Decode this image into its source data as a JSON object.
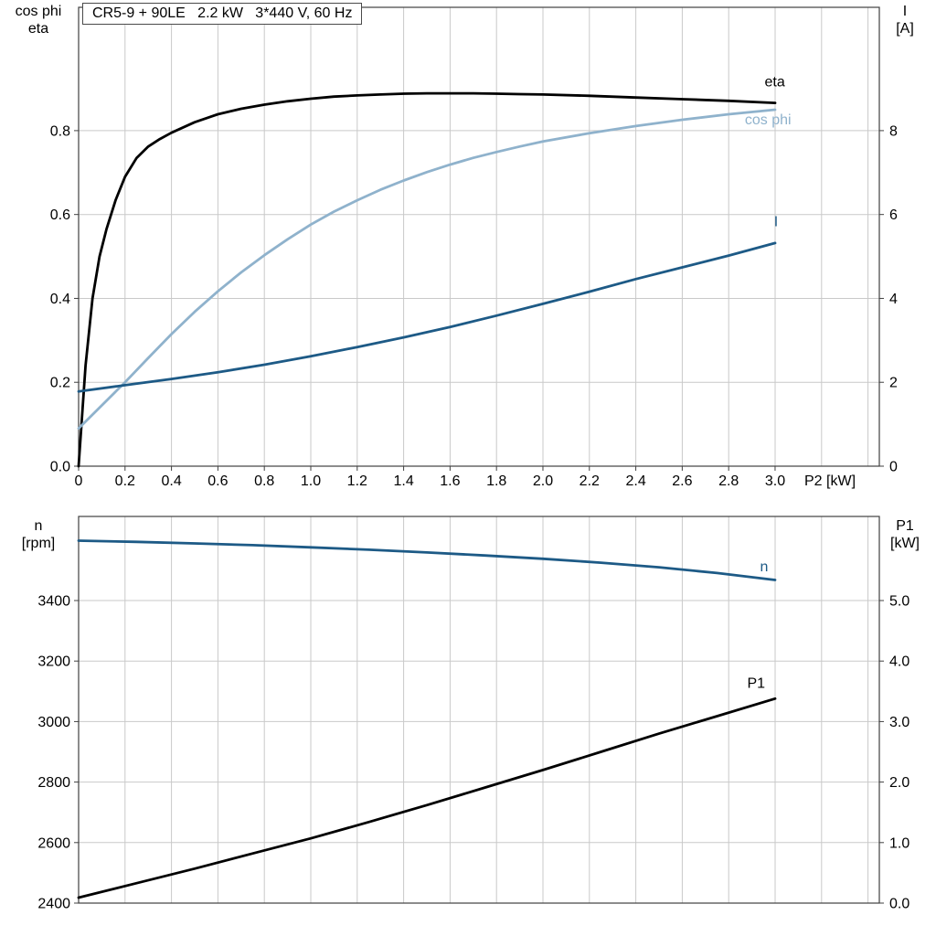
{
  "title": "CR5-9 + 90LE   2.2 kW   3*440 V, 60 Hz",
  "colors": {
    "curve_black": "#000000",
    "curve_dark_blue": "#1d5a86",
    "curve_light_blue": "#8fb2cc",
    "grid": "#c9c9c9",
    "frame": "#404040",
    "text": "#000000"
  },
  "chart_data": [
    {
      "type": "line",
      "panel": "top",
      "xlabel": "P2 [kW]",
      "x_domain": [
        0,
        3.449
      ],
      "grid_x_step": 0.2,
      "x_ticks": [
        {
          "v": 0,
          "label": "0"
        },
        {
          "v": 0.2,
          "label": "0.2"
        },
        {
          "v": 0.4,
          "label": "0.4"
        },
        {
          "v": 0.6,
          "label": "0.6"
        },
        {
          "v": 0.8,
          "label": "0.8"
        },
        {
          "v": 1.0,
          "label": "1.0"
        },
        {
          "v": 1.2,
          "label": "1.2"
        },
        {
          "v": 1.4,
          "label": "1.4"
        },
        {
          "v": 1.6,
          "label": "1.6"
        },
        {
          "v": 1.8,
          "label": "1.8"
        },
        {
          "v": 2.0,
          "label": "2.0"
        },
        {
          "v": 2.2,
          "label": "2.2"
        },
        {
          "v": 2.4,
          "label": "2.4"
        },
        {
          "v": 2.6,
          "label": "2.6"
        },
        {
          "v": 2.8,
          "label": "2.8"
        },
        {
          "v": 3.0,
          "label": "3.0"
        }
      ],
      "left_axis": {
        "label_lines": [
          "cos phi",
          "eta"
        ],
        "domain": [
          0,
          1.094
        ],
        "ticks": [
          {
            "v": 0.0,
            "label": "0.0"
          },
          {
            "v": 0.2,
            "label": "0.2"
          },
          {
            "v": 0.4,
            "label": "0.4"
          },
          {
            "v": 0.6,
            "label": "0.6"
          },
          {
            "v": 0.8,
            "label": "0.8"
          }
        ]
      },
      "right_axis": {
        "label_lines": [
          "I",
          "[A]"
        ],
        "domain": [
          0,
          10.94
        ],
        "ticks": [
          {
            "v": 0,
            "label": "0"
          },
          {
            "v": 2,
            "label": "2"
          },
          {
            "v": 4,
            "label": "4"
          },
          {
            "v": 6,
            "label": "6"
          },
          {
            "v": 8,
            "label": "8"
          }
        ]
      },
      "series": [
        {
          "name": "eta",
          "axis": "left",
          "color_key": "curve_black",
          "width": 2.8,
          "label": {
            "text": "eta",
            "x": 2.955,
            "y": 0.905
          },
          "points": [
            [
              0,
              0
            ],
            [
              0.03,
              0.24
            ],
            [
              0.06,
              0.4
            ],
            [
              0.09,
              0.5
            ],
            [
              0.12,
              0.565
            ],
            [
              0.16,
              0.635
            ],
            [
              0.2,
              0.69
            ],
            [
              0.25,
              0.735
            ],
            [
              0.3,
              0.762
            ],
            [
              0.35,
              0.78
            ],
            [
              0.4,
              0.795
            ],
            [
              0.5,
              0.82
            ],
            [
              0.6,
              0.839
            ],
            [
              0.7,
              0.852
            ],
            [
              0.8,
              0.862
            ],
            [
              0.9,
              0.87
            ],
            [
              1.0,
              0.876
            ],
            [
              1.1,
              0.881
            ],
            [
              1.2,
              0.884
            ],
            [
              1.3,
              0.886
            ],
            [
              1.4,
              0.888
            ],
            [
              1.5,
              0.889
            ],
            [
              1.6,
              0.889
            ],
            [
              1.7,
              0.889
            ],
            [
              1.8,
              0.888
            ],
            [
              1.9,
              0.887
            ],
            [
              2.0,
              0.886
            ],
            [
              2.2,
              0.883
            ],
            [
              2.4,
              0.879
            ],
            [
              2.6,
              0.875
            ],
            [
              2.8,
              0.871
            ],
            [
              3.0,
              0.866
            ]
          ]
        },
        {
          "name": "cos phi",
          "axis": "left",
          "color_key": "curve_light_blue",
          "width": 2.8,
          "label": {
            "text": "cos phi",
            "x": 2.87,
            "y": 0.815
          },
          "points": [
            [
              0,
              0.09
            ],
            [
              0.1,
              0.145
            ],
            [
              0.2,
              0.2
            ],
            [
              0.3,
              0.258
            ],
            [
              0.4,
              0.315
            ],
            [
              0.5,
              0.368
            ],
            [
              0.6,
              0.417
            ],
            [
              0.7,
              0.462
            ],
            [
              0.8,
              0.503
            ],
            [
              0.9,
              0.541
            ],
            [
              1.0,
              0.576
            ],
            [
              1.1,
              0.607
            ],
            [
              1.2,
              0.634
            ],
            [
              1.3,
              0.659
            ],
            [
              1.4,
              0.681
            ],
            [
              1.5,
              0.701
            ],
            [
              1.6,
              0.719
            ],
            [
              1.7,
              0.735
            ],
            [
              1.8,
              0.749
            ],
            [
              1.9,
              0.762
            ],
            [
              2.0,
              0.774
            ],
            [
              2.2,
              0.794
            ],
            [
              2.4,
              0.811
            ],
            [
              2.6,
              0.826
            ],
            [
              2.8,
              0.839
            ],
            [
              3.0,
              0.85
            ]
          ]
        },
        {
          "name": "I",
          "axis": "right",
          "color_key": "curve_dark_blue",
          "width": 2.8,
          "label": {
            "text": "I",
            "x": 2.995,
            "y": 5.72
          },
          "points": [
            [
              0,
              1.78
            ],
            [
              0.2,
              1.93
            ],
            [
              0.4,
              2.08
            ],
            [
              0.6,
              2.24
            ],
            [
              0.8,
              2.42
            ],
            [
              1.0,
              2.62
            ],
            [
              1.2,
              2.84
            ],
            [
              1.4,
              3.07
            ],
            [
              1.6,
              3.32
            ],
            [
              1.8,
              3.59
            ],
            [
              2.0,
              3.87
            ],
            [
              2.2,
              4.16
            ],
            [
              2.4,
              4.46
            ],
            [
              2.6,
              4.74
            ],
            [
              2.8,
              5.02
            ],
            [
              3.0,
              5.32
            ]
          ]
        }
      ]
    },
    {
      "type": "line",
      "panel": "bottom",
      "xlabel": "",
      "x_domain": [
        0,
        3.449
      ],
      "grid_x_step": 0.2,
      "x_ticks": [],
      "left_axis": {
        "label_lines": [
          "n",
          "[rpm]"
        ],
        "domain": [
          2400,
          3678
        ],
        "ticks": [
          {
            "v": 2400,
            "label": "2400"
          },
          {
            "v": 2600,
            "label": "2600"
          },
          {
            "v": 2800,
            "label": "2800"
          },
          {
            "v": 3000,
            "label": "3000"
          },
          {
            "v": 3200,
            "label": "3200"
          },
          {
            "v": 3400,
            "label": "3400"
          }
        ]
      },
      "right_axis": {
        "label_lines": [
          "P1",
          "[kW]"
        ],
        "domain": [
          0,
          6.39
        ],
        "ticks": [
          {
            "v": 0,
            "label": "0.0"
          },
          {
            "v": 1,
            "label": "1.0"
          },
          {
            "v": 2,
            "label": "2.0"
          },
          {
            "v": 3,
            "label": "3.0"
          },
          {
            "v": 4,
            "label": "4.0"
          },
          {
            "v": 5,
            "label": "5.0"
          }
        ]
      },
      "series": [
        {
          "name": "n",
          "axis": "left",
          "color_key": "curve_dark_blue",
          "width": 2.8,
          "label": {
            "text": "n",
            "x": 2.935,
            "y": 3496
          },
          "points": [
            [
              0,
              3598
            ],
            [
              0.25,
              3594
            ],
            [
              0.5,
              3589
            ],
            [
              0.75,
              3583
            ],
            [
              1.0,
              3576
            ],
            [
              1.25,
              3568
            ],
            [
              1.5,
              3559
            ],
            [
              1.75,
              3549
            ],
            [
              2.0,
              3538
            ],
            [
              2.25,
              3525
            ],
            [
              2.5,
              3510
            ],
            [
              2.75,
              3491
            ],
            [
              3.0,
              3468
            ]
          ]
        },
        {
          "name": "P1",
          "axis": "right",
          "color_key": "curve_black",
          "width": 2.8,
          "label": {
            "text": "P1",
            "x": 2.88,
            "y": 3.56
          },
          "points": [
            [
              0,
              0.09
            ],
            [
              0.25,
              0.33
            ],
            [
              0.5,
              0.57
            ],
            [
              0.75,
              0.82
            ],
            [
              1.0,
              1.07
            ],
            [
              1.25,
              1.34
            ],
            [
              1.5,
              1.62
            ],
            [
              1.75,
              1.91
            ],
            [
              2.0,
              2.2
            ],
            [
              2.25,
              2.5
            ],
            [
              2.5,
              2.8
            ],
            [
              2.75,
              3.09
            ],
            [
              3.0,
              3.38
            ]
          ]
        }
      ]
    }
  ]
}
